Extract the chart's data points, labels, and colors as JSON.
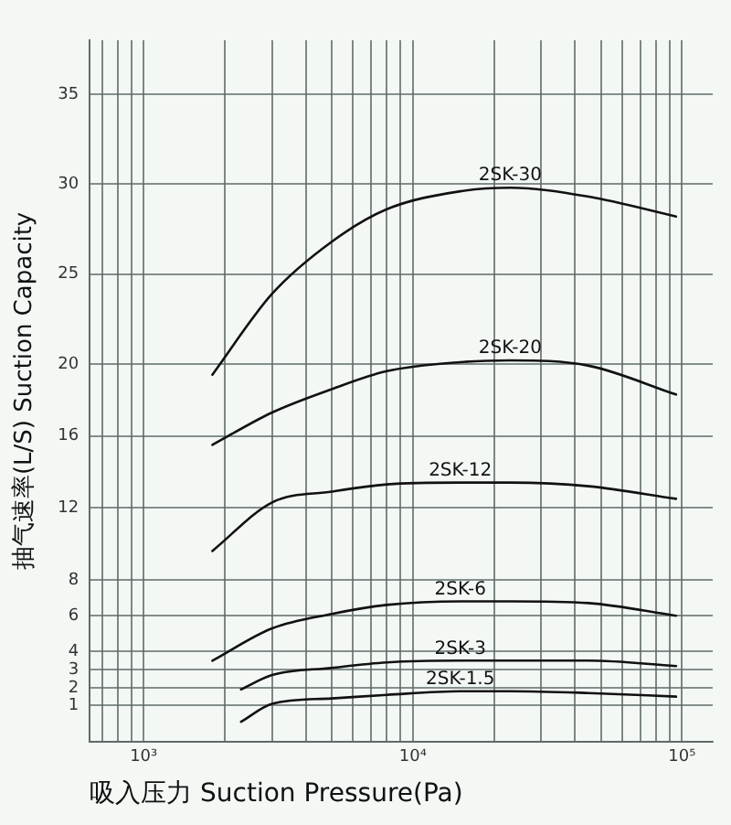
{
  "chart_data": {
    "type": "line",
    "xlabel": "吸入压力 Suction Pressure(Pa)",
    "ylabel": "抽气速率(L/S) Suction Capacity",
    "log": "x",
    "grid": true,
    "legend": false,
    "marker": "none",
    "line_style": "solid",
    "xlim": [
      630,
      130000
    ],
    "xticks": [
      {
        "value": 700,
        "label": null
      },
      {
        "value": 800,
        "label": null
      },
      {
        "value": 900,
        "label": null
      },
      {
        "value": 1000,
        "label": "10³"
      },
      {
        "value": 2000,
        "label": null
      },
      {
        "value": 3000,
        "label": null
      },
      {
        "value": 4000,
        "label": null
      },
      {
        "value": 5000,
        "label": null
      },
      {
        "value": 6000,
        "label": null
      },
      {
        "value": 7000,
        "label": null
      },
      {
        "value": 8000,
        "label": null
      },
      {
        "value": 9000,
        "label": null
      },
      {
        "value": 10000,
        "label": "10⁴"
      },
      {
        "value": 20000,
        "label": null
      },
      {
        "value": 30000,
        "label": null
      },
      {
        "value": 40000,
        "label": null
      },
      {
        "value": 50000,
        "label": null
      },
      {
        "value": 60000,
        "label": null
      },
      {
        "value": 70000,
        "label": null
      },
      {
        "value": 80000,
        "label": null
      },
      {
        "value": 90000,
        "label": null
      },
      {
        "value": 100000,
        "label": "10⁵"
      }
    ],
    "ylim": [
      -1,
      38
    ],
    "yticks": [
      1,
      2,
      3,
      4,
      6,
      8,
      12,
      16,
      20,
      25,
      30,
      35
    ],
    "series": [
      {
        "name": "2SK-30",
        "color": "#111111",
        "x": [
          1800,
          3000,
          5000,
          8000,
          15000,
          23000,
          45000,
          95000
        ],
        "values": [
          19.4,
          23.9,
          26.8,
          28.6,
          29.6,
          29.8,
          29.3,
          28.2
        ]
      },
      {
        "name": "2SK-20",
        "color": "#111111",
        "x": [
          1800,
          3000,
          5000,
          8000,
          15000,
          23000,
          45000,
          95000
        ],
        "values": [
          15.5,
          17.3,
          18.6,
          19.6,
          20.1,
          20.2,
          19.9,
          18.3
        ]
      },
      {
        "name": "2SK-12",
        "color": "#111111",
        "x": [
          1800,
          3000,
          5000,
          8000,
          15000,
          23000,
          45000,
          95000
        ],
        "values": [
          9.6,
          12.3,
          12.9,
          13.3,
          13.4,
          13.4,
          13.2,
          12.5
        ]
      },
      {
        "name": "2SK-6",
        "color": "#111111",
        "x": [
          1800,
          3000,
          5000,
          8000,
          15000,
          23000,
          45000,
          95000
        ],
        "values": [
          3.5,
          5.3,
          6.1,
          6.6,
          6.8,
          6.8,
          6.7,
          6.0
        ]
      },
      {
        "name": "2SK-3",
        "color": "#111111",
        "x": [
          2300,
          3000,
          5000,
          8000,
          15000,
          23000,
          45000,
          95000
        ],
        "values": [
          1.9,
          2.7,
          3.1,
          3.4,
          3.5,
          3.5,
          3.5,
          3.2
        ]
      },
      {
        "name": "2SK-1.5",
        "color": "#111111",
        "x": [
          2300,
          3000,
          5000,
          8000,
          15000,
          23000,
          45000,
          95000
        ],
        "values": [
          0.1,
          1.1,
          1.4,
          1.6,
          1.8,
          1.8,
          1.7,
          1.5
        ]
      }
    ]
  }
}
